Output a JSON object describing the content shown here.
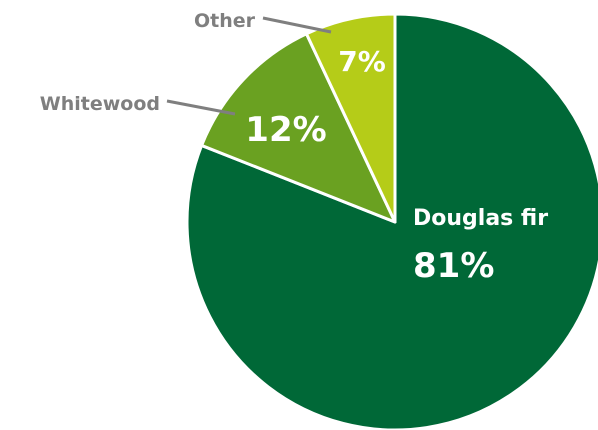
{
  "chart_data": {
    "type": "pie",
    "title": "",
    "slices": [
      {
        "label": "Douglas fir",
        "value": 81,
        "value_label": "81%",
        "color": "#006837"
      },
      {
        "label": "Whitewood",
        "value": 12,
        "value_label": "12%",
        "color": "#6aa121"
      },
      {
        "label": "Other",
        "value": 7,
        "value_label": "7%",
        "color": "#b5cc18"
      }
    ],
    "label_color": "#7f7f7f",
    "value_text_color": "#ffffff",
    "slice_border_color": "#ffffff",
    "start": "12 o'clock",
    "direction": "clockwise"
  }
}
